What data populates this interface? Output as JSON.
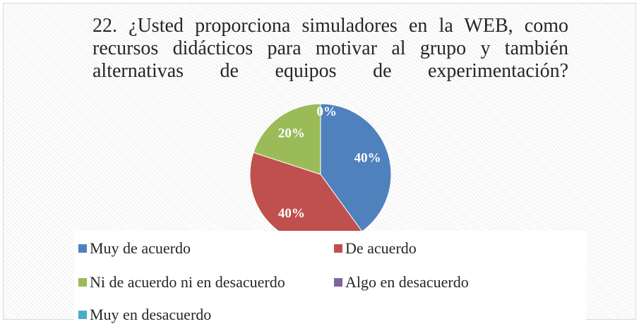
{
  "chart_data": {
    "type": "pie",
    "title": "22. ¿Usted proporciona simuladores en la WEB, como recursos didácticos para motivar al grupo y también alternativas de equipos de experimentación?",
    "categories": [
      "Muy de acuerdo",
      "De acuerdo",
      "Ni de acuerdo ni en desacuerdo",
      "Algo en desacuerdo",
      "Muy en desacuerdo"
    ],
    "values": [
      40,
      40,
      20,
      0,
      0
    ],
    "value_labels": [
      "40%",
      "40%",
      "20%",
      "0%",
      null
    ],
    "colors": [
      "#4f81bd",
      "#c0504d",
      "#9bbb59",
      "#8064a2",
      "#4bacc6"
    ],
    "legend": "bottom"
  }
}
